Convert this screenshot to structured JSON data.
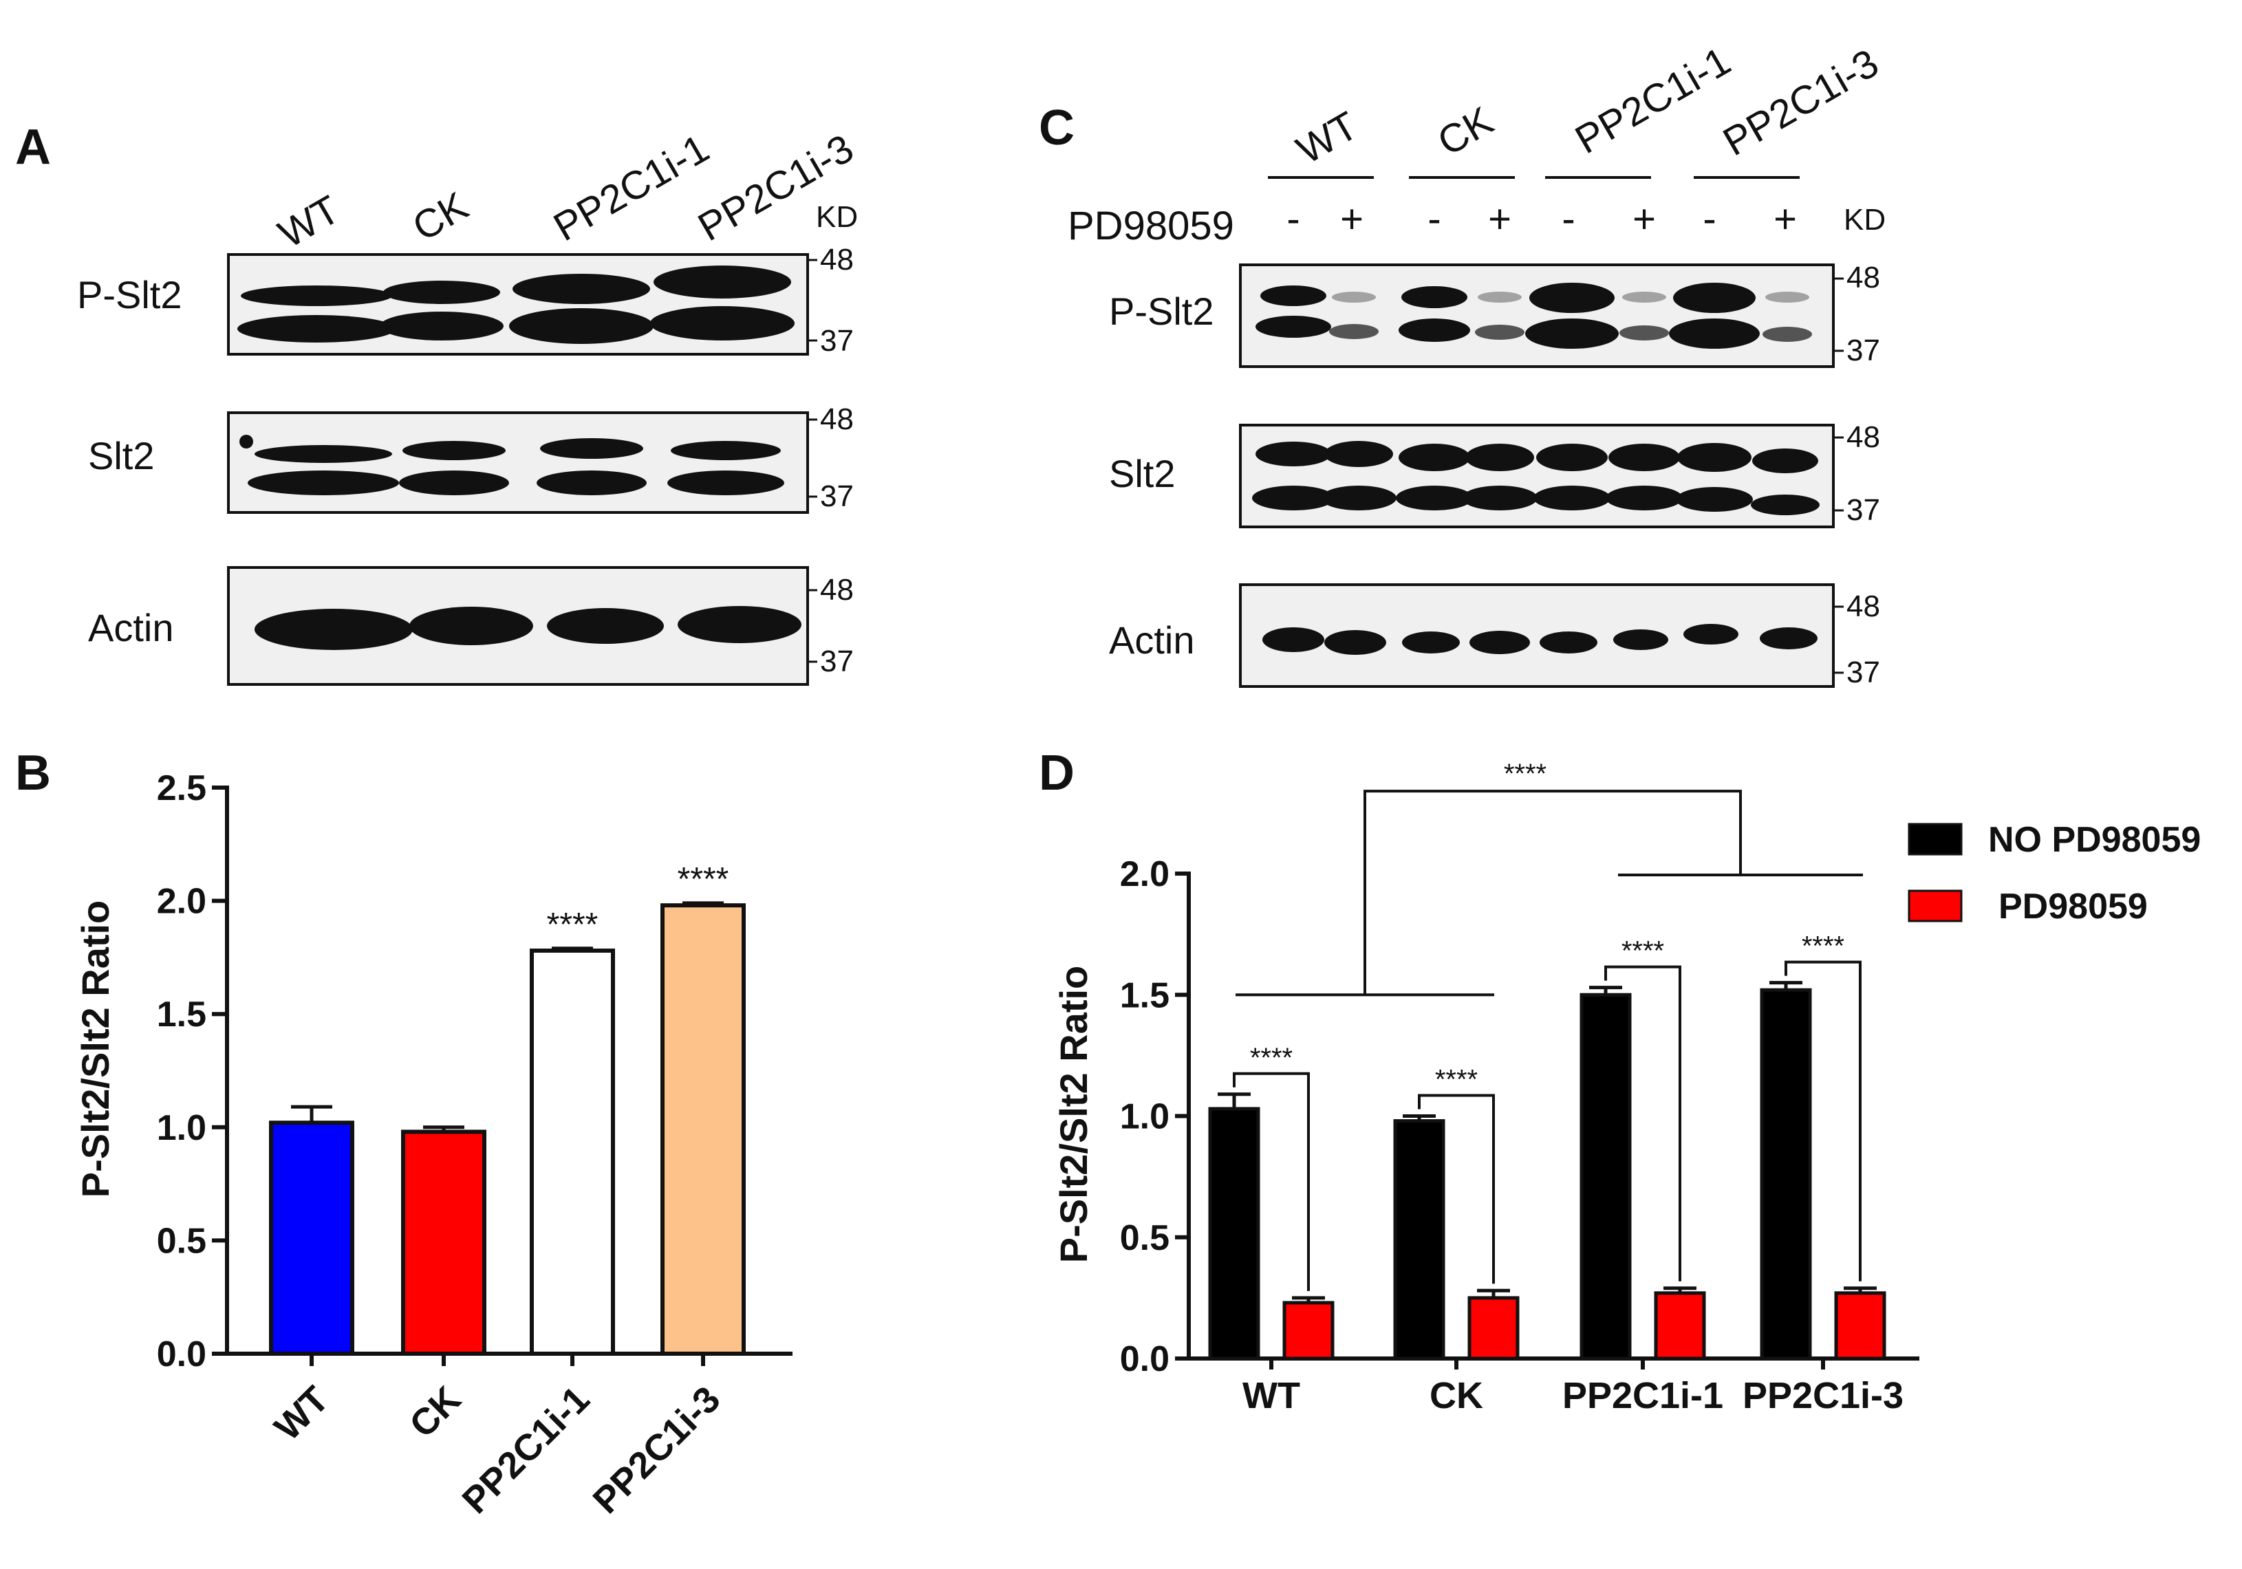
{
  "panels": {
    "A": {
      "label": "A",
      "lanes": [
        "WT",
        "CK",
        "PP2C1i-1",
        "PP2C1i-3"
      ],
      "kd_label": "KD",
      "blots": [
        {
          "name": "P-Slt2",
          "markers": [
            "48",
            "37"
          ]
        },
        {
          "name": "Slt2",
          "markers": [
            "48",
            "37"
          ]
        },
        {
          "name": "Actin",
          "markers": [
            "48",
            "37"
          ]
        }
      ]
    },
    "C": {
      "label": "C",
      "groups": [
        "WT",
        "CK",
        "PP2C1i-1",
        "PP2C1i-3"
      ],
      "treatment_label": "PD98059",
      "treatment_signs": [
        "-",
        "+",
        "-",
        "+",
        "-",
        "+",
        "-",
        "+"
      ],
      "kd_label": "KD",
      "blots": [
        {
          "name": "P-Slt2",
          "markers": [
            "48",
            "37"
          ]
        },
        {
          "name": "Slt2",
          "markers": [
            "48",
            "37"
          ]
        },
        {
          "name": "Actin",
          "markers": [
            "48",
            "37"
          ]
        }
      ]
    },
    "B": {
      "label": "B"
    },
    "D": {
      "label": "D"
    }
  },
  "chart_data": [
    {
      "panel": "B",
      "type": "bar",
      "categories": [
        "WT",
        "CK",
        "PP2C1i-1",
        "PP2C1i-3"
      ],
      "values": [
        1.02,
        0.98,
        1.78,
        1.98
      ],
      "errors": [
        0.07,
        0.02,
        0.01,
        0.01
      ],
      "colors": [
        "#0000ff",
        "#ff0000",
        "#ffffff",
        "#fcc28a"
      ],
      "significance": [
        "",
        "",
        "****",
        "****"
      ],
      "ylabel": "P-Slt2/Slt2 Ratio",
      "ylim": [
        0,
        2.5
      ],
      "yticks": [
        "0.0",
        "0.5",
        "1.0",
        "1.5",
        "2.0",
        "2.5"
      ],
      "legend": "none"
    },
    {
      "panel": "D",
      "type": "bar",
      "categories": [
        "WT",
        "CK",
        "PP2C1i-1",
        "PP2C1i-3"
      ],
      "series": [
        {
          "name": "NO PD98059",
          "color": "#000000",
          "values": [
            1.03,
            0.98,
            1.5,
            1.52
          ],
          "errors": [
            0.06,
            0.02,
            0.03,
            0.03
          ]
        },
        {
          "name": "PD98059",
          "color": "#ff0000",
          "values": [
            0.23,
            0.25,
            0.27,
            0.27
          ],
          "errors": [
            0.02,
            0.03,
            0.02,
            0.02
          ]
        }
      ],
      "pair_significance": [
        "****",
        "****",
        "****",
        "****"
      ],
      "group_significance": "****",
      "ylabel": "P-Slt2/Slt2 Ratio",
      "ylim": [
        0,
        2.0
      ],
      "yticks": [
        "0.0",
        "0.5",
        "1.0",
        "1.5",
        "2.0"
      ],
      "legend": "top-right"
    }
  ]
}
